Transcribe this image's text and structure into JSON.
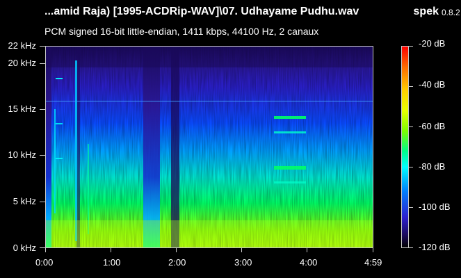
{
  "header": {
    "file_title": "...amid Raja) [1995-ACDRip-WAV]\\07. Udhayame Pudhu.wav",
    "app_name": "spek",
    "app_version": "0.8.2",
    "audio_info": "PCM signed 16-bit little-endian, 1411 kbps, 44100 Hz, 2 canaux"
  },
  "spectrogram": {
    "y_axis_labels": [
      "22 kHz",
      "20 kHz",
      "15 kHz",
      "10 kHz",
      "5 kHz",
      "0 kHz"
    ],
    "x_axis_labels": [
      "0:00",
      "1:00",
      "2:00",
      "3:00",
      "4:00",
      "4:59"
    ],
    "db_scale_labels": [
      "-20 dB",
      "-40 dB",
      "-60 dB",
      "-80 dB",
      "-100 dB",
      "-120 dB"
    ],
    "colors": {
      "background": "#000000",
      "low": "#1a0a5a",
      "mid": "#00ff88",
      "high": "#ff0000"
    }
  }
}
